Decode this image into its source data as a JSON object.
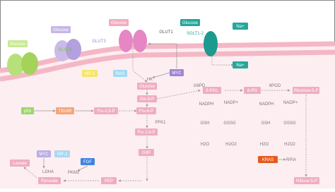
{
  "nodes": [
    {
      "label": "Glucose"
    },
    {
      "label": "GLUT4"
    },
    {
      "label": "Glucose"
    },
    {
      "label": "GLUT3"
    },
    {
      "label": "Glucose"
    },
    {
      "label": "GLUT1"
    },
    {
      "label": "Glucose"
    },
    {
      "label": "SGLT1-2"
    },
    {
      "label": "Na+"
    },
    {
      "label": "Na+"
    },
    {
      "label": "HIF-1"
    },
    {
      "label": "RAS"
    },
    {
      "label": "MYC"
    },
    {
      "label": "HK"
    },
    {
      "label": "Glucose"
    },
    {
      "label": "Glc-6-P"
    },
    {
      "label": "G6PD"
    },
    {
      "label": "6-PGL"
    },
    {
      "label": "6-PG"
    },
    {
      "label": "6PGD"
    },
    {
      "label": "Ribulose-5-P"
    },
    {
      "label": "NADPH"
    },
    {
      "label": "NADP+"
    },
    {
      "label": "GSH"
    },
    {
      "label": "GSSG"
    },
    {
      "label": "H2O"
    },
    {
      "label": "H2O2"
    },
    {
      "label": "NADPH"
    },
    {
      "label": "NADP+"
    },
    {
      "label": "GSH"
    },
    {
      "label": "GSSG"
    },
    {
      "label": "H2O"
    },
    {
      "label": "H2O2"
    },
    {
      "label": "p53"
    },
    {
      "label": "TIGAR"
    },
    {
      "label": "Fru-2,6-P"
    },
    {
      "label": "Fru-6-P"
    },
    {
      "label": "PFK1"
    },
    {
      "label": "Fru-1,6-P"
    },
    {
      "label": "G3P"
    },
    {
      "label": "MYC"
    },
    {
      "label": "HIF-1"
    },
    {
      "label": "Lactate"
    },
    {
      "label": "LDHA"
    },
    {
      "label": "FGF"
    },
    {
      "label": "PKM2"
    },
    {
      "label": "Pyruvate"
    },
    {
      "label": "PEP"
    },
    {
      "label": "KRAS"
    },
    {
      "label": "RPIA"
    },
    {
      "label": "Ribose-5-P"
    }
  ]
}
